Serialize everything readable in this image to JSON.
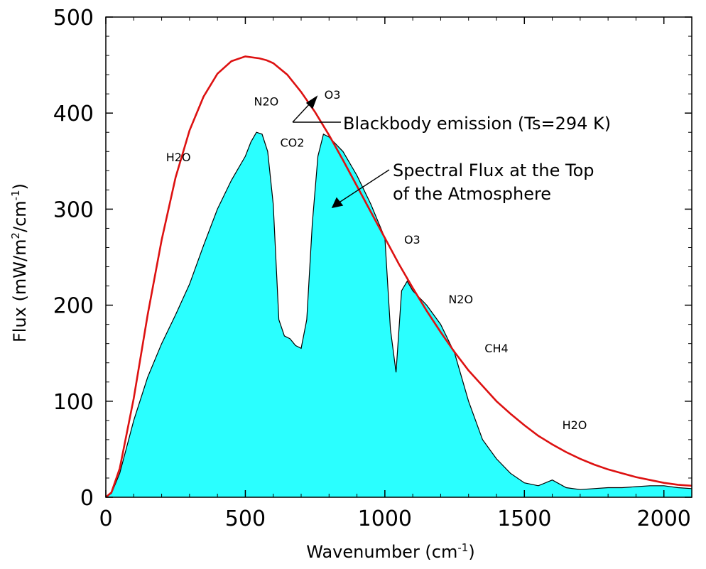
{
  "chart_data": {
    "type": "area",
    "xlabel": "Wavenumber (cm",
    "xlabel_sup": "-1",
    "xlabel_end": ")",
    "ylabel": "Flux (mW/m",
    "ylabel_sup1": "2",
    "ylabel_mid": "/cm",
    "ylabel_sup2": "-1",
    "ylabel_end": ")",
    "xlim": [
      0,
      2100
    ],
    "ylim": [
      0,
      500
    ],
    "x_ticks": [
      0,
      500,
      1000,
      1500,
      2000
    ],
    "y_ticks": [
      0,
      100,
      200,
      300,
      400,
      500
    ],
    "grid": false,
    "colors": {
      "blackbody_line": "#dd1111",
      "fill": "#2affff",
      "flux_line": "#000000"
    },
    "series": [
      {
        "name": "Blackbody emission (Ts=294 K)",
        "kind": "line",
        "temperature_K": 294,
        "x": [
          0,
          20,
          50,
          100,
          150,
          200,
          250,
          300,
          350,
          400,
          450,
          500,
          550,
          576,
          600,
          650,
          700,
          750,
          800,
          850,
          900,
          950,
          1000,
          1050,
          1100,
          1150,
          1200,
          1250,
          1300,
          1350,
          1400,
          1450,
          1500,
          1550,
          1600,
          1650,
          1700,
          1750,
          1800,
          1850,
          1900,
          1950,
          2000,
          2050,
          2100
        ],
        "y": [
          0,
          5,
          30,
          103,
          190,
          268,
          333,
          382,
          417,
          441,
          454,
          459,
          457,
          455,
          452,
          440,
          422,
          401,
          377,
          351,
          324,
          297,
          270,
          243,
          218,
          194,
          172,
          151,
          132,
          116,
          100,
          87,
          75,
          64,
          55,
          47,
          40,
          34,
          29,
          25,
          21,
          18,
          15,
          13,
          12
        ]
      },
      {
        "name": "Spectral Flux at the Top of the Atmosphere",
        "kind": "filled-area",
        "x": [
          0,
          20,
          50,
          100,
          150,
          200,
          250,
          300,
          350,
          400,
          450,
          500,
          520,
          540,
          560,
          580,
          600,
          620,
          640,
          660,
          680,
          700,
          720,
          740,
          760,
          780,
          800,
          850,
          900,
          950,
          1000,
          1020,
          1040,
          1060,
          1080,
          1100,
          1150,
          1200,
          1250,
          1300,
          1350,
          1400,
          1450,
          1500,
          1550,
          1600,
          1650,
          1700,
          1750,
          1800,
          1850,
          1900,
          1950,
          2000,
          2050,
          2100
        ],
        "y": [
          0,
          4,
          25,
          80,
          125,
          160,
          190,
          222,
          262,
          300,
          330,
          355,
          370,
          380,
          378,
          360,
          305,
          185,
          168,
          165,
          158,
          155,
          185,
          285,
          355,
          378,
          375,
          360,
          335,
          305,
          270,
          175,
          130,
          215,
          225,
          215,
          200,
          180,
          150,
          100,
          60,
          40,
          25,
          15,
          12,
          18,
          10,
          8,
          9,
          10,
          10,
          11,
          12,
          12,
          10,
          9
        ]
      }
    ],
    "annotations": {
      "blackbody": "Blackbody emission (Ts=294 K)",
      "spectral_line1": "Spectral Flux at the Top",
      "spectral_line2": "of the Atmosphere",
      "gases": [
        {
          "label": "H2O",
          "x": 260,
          "y": 350
        },
        {
          "label": "N2O",
          "x": 575,
          "y": 408
        },
        {
          "label": "CO2",
          "x": 668,
          "y": 365
        },
        {
          "label": "O3",
          "x": 812,
          "y": 415
        },
        {
          "label": "O3",
          "x": 1098,
          "y": 264
        },
        {
          "label": "N2O",
          "x": 1272,
          "y": 202
        },
        {
          "label": "CH4",
          "x": 1400,
          "y": 151
        },
        {
          "label": "H2O",
          "x": 1680,
          "y": 71
        }
      ]
    }
  }
}
